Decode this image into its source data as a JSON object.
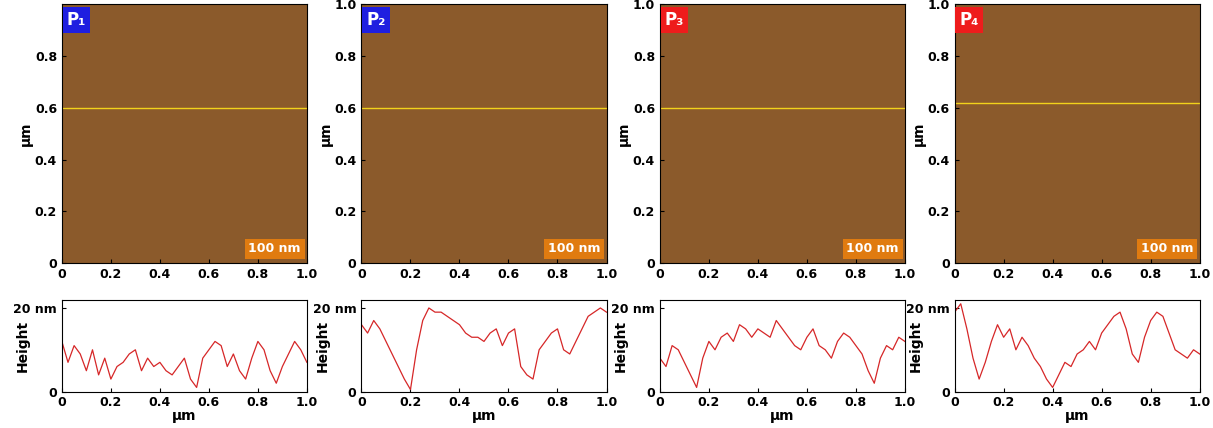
{
  "chart_data": [
    {
      "type": "image",
      "title": "P₁",
      "color": "#1f1fe0",
      "ylabel": "µm",
      "annotations": [
        "100 nm"
      ],
      "profile_line_y": 0.6,
      "xlim": [
        0,
        1
      ],
      "ylim": [
        0,
        1
      ],
      "xticks": [
        0,
        0.2,
        0.4,
        0.6,
        0.8,
        {
          "value": 1,
          "label": "1.0"
        }
      ],
      "yticks": [
        0,
        0.2,
        0.4,
        0.6,
        0.8
      ]
    },
    {
      "type": "image",
      "title": "P₂",
      "color": "#1f1fe0",
      "ylabel": "µm",
      "annotations": [
        "100 nm"
      ],
      "profile_line_y": 0.6,
      "xlim": [
        0,
        1
      ],
      "ylim": [
        0,
        1
      ],
      "xticks": [
        0,
        0.2,
        0.4,
        0.6,
        0.8,
        {
          "value": 1,
          "label": "1.0"
        }
      ],
      "yticks": [
        0,
        0.2,
        0.4,
        0.6,
        0.8,
        {
          "value": 1,
          "label": "1.0"
        }
      ]
    },
    {
      "type": "image",
      "title": "P₃",
      "color": "#ee1c1c",
      "ylabel": "µm",
      "annotations": [
        "100 nm"
      ],
      "profile_line_y": 0.6,
      "xlim": [
        0,
        1
      ],
      "ylim": [
        0,
        1
      ],
      "xticks": [
        0,
        0.2,
        0.4,
        0.6,
        0.8,
        {
          "value": 1,
          "label": "1.0"
        }
      ],
      "yticks": [
        0,
        0.2,
        0.4,
        0.6,
        0.8,
        {
          "value": 1,
          "label": "1.0"
        }
      ]
    },
    {
      "type": "image",
      "title": "P₄",
      "color": "#ee1c1c",
      "ylabel": "µm",
      "annotations": [
        "100 nm"
      ],
      "profile_line_y": 0.62,
      "xlim": [
        0,
        1
      ],
      "ylim": [
        0,
        1
      ],
      "xticks": [
        0,
        0.2,
        0.4,
        0.6,
        0.8,
        {
          "value": 1,
          "label": "1.0"
        }
      ],
      "yticks": [
        0,
        0.2,
        0.4,
        0.6,
        0.8,
        {
          "value": 1,
          "label": "1.0"
        }
      ]
    },
    {
      "type": "line",
      "xlabel": "µm",
      "ylabel": "Height",
      "color": "#d62728",
      "x": [
        0,
        0.025,
        0.05,
        0.075,
        0.1,
        0.125,
        0.15,
        0.175,
        0.2,
        0.225,
        0.25,
        0.275,
        0.3,
        0.325,
        0.35,
        0.375,
        0.4,
        0.425,
        0.45,
        0.475,
        0.5,
        0.525,
        0.55,
        0.575,
        0.6,
        0.625,
        0.65,
        0.675,
        0.7,
        0.725,
        0.75,
        0.775,
        0.8,
        0.825,
        0.85,
        0.875,
        0.9,
        0.925,
        0.95,
        0.975,
        1
      ],
      "values": [
        12,
        7,
        11,
        9,
        5,
        10,
        4,
        8,
        3,
        6,
        7,
        9,
        10,
        5,
        8,
        6,
        7,
        5,
        4,
        6,
        8,
        3,
        1,
        8,
        10,
        12,
        11,
        6,
        9,
        5,
        3,
        8,
        12,
        10,
        5,
        2,
        6,
        9,
        12,
        10,
        7
      ],
      "xlim": [
        0,
        1
      ],
      "ylim": [
        0,
        22
      ],
      "xticks": [
        0,
        0.2,
        0.4,
        0.6,
        0.8,
        {
          "value": 1,
          "label": "1.0"
        }
      ],
      "yticks": [
        0,
        {
          "value": 20,
          "label": "20 nm"
        }
      ]
    },
    {
      "type": "line",
      "xlabel": "µm",
      "ylabel": "Height",
      "color": "#d62728",
      "x": [
        0,
        0.025,
        0.05,
        0.075,
        0.1,
        0.125,
        0.15,
        0.175,
        0.2,
        0.225,
        0.25,
        0.275,
        0.3,
        0.325,
        0.35,
        0.375,
        0.4,
        0.425,
        0.45,
        0.475,
        0.5,
        0.525,
        0.55,
        0.575,
        0.6,
        0.625,
        0.65,
        0.675,
        0.7,
        0.725,
        0.75,
        0.775,
        0.8,
        0.825,
        0.85,
        0.875,
        0.9,
        0.925,
        0.95,
        0.975,
        1
      ],
      "values": [
        16,
        14,
        17,
        15,
        12,
        9,
        6,
        3,
        0.5,
        10,
        17,
        20,
        19,
        19,
        18,
        17,
        16,
        14,
        13,
        13,
        12,
        14,
        15,
        11,
        14,
        15,
        6,
        4,
        3,
        10,
        12,
        14,
        15,
        10,
        9,
        12,
        15,
        18,
        19,
        20,
        19
      ],
      "xlim": [
        0,
        1
      ],
      "ylim": [
        0,
        22
      ],
      "xticks": [
        0,
        0.2,
        0.4,
        0.6,
        0.8,
        {
          "value": 1,
          "label": "1.0"
        }
      ],
      "yticks": [
        0,
        {
          "value": 20,
          "label": "20 nm"
        }
      ]
    },
    {
      "type": "line",
      "xlabel": "µm",
      "ylabel": "Height",
      "color": "#d62728",
      "x": [
        0,
        0.025,
        0.05,
        0.075,
        0.1,
        0.125,
        0.15,
        0.175,
        0.2,
        0.225,
        0.25,
        0.275,
        0.3,
        0.325,
        0.35,
        0.375,
        0.4,
        0.425,
        0.45,
        0.475,
        0.5,
        0.525,
        0.55,
        0.575,
        0.6,
        0.625,
        0.65,
        0.675,
        0.7,
        0.725,
        0.75,
        0.775,
        0.8,
        0.825,
        0.85,
        0.875,
        0.9,
        0.925,
        0.95,
        0.975,
        1
      ],
      "values": [
        8,
        6,
        11,
        10,
        7,
        4,
        1,
        8,
        12,
        10,
        13,
        14,
        12,
        16,
        15,
        13,
        15,
        14,
        13,
        17,
        15,
        13,
        11,
        10,
        13,
        15,
        11,
        10,
        8,
        12,
        14,
        13,
        11,
        9,
        5,
        2,
        8,
        11,
        10,
        13,
        12
      ],
      "xlim": [
        0,
        1
      ],
      "ylim": [
        0,
        22
      ],
      "xticks": [
        0,
        0.2,
        0.4,
        0.6,
        0.8,
        {
          "value": 1,
          "label": "1.0"
        }
      ],
      "yticks": [
        0,
        {
          "value": 20,
          "label": "20 nm"
        }
      ]
    },
    {
      "type": "line",
      "xlabel": "µm",
      "ylabel": "Height",
      "color": "#d62728",
      "x": [
        0,
        0.025,
        0.05,
        0.075,
        0.1,
        0.125,
        0.15,
        0.175,
        0.2,
        0.225,
        0.25,
        0.275,
        0.3,
        0.325,
        0.35,
        0.375,
        0.4,
        0.425,
        0.45,
        0.475,
        0.5,
        0.525,
        0.55,
        0.575,
        0.6,
        0.625,
        0.65,
        0.675,
        0.7,
        0.725,
        0.75,
        0.775,
        0.8,
        0.825,
        0.85,
        0.875,
        0.9,
        0.925,
        0.95,
        0.975,
        1
      ],
      "values": [
        19,
        21,
        15,
        8,
        3,
        7,
        12,
        16,
        13,
        15,
        10,
        13,
        11,
        8,
        6,
        3,
        1,
        4,
        7,
        6,
        9,
        10,
        12,
        10,
        14,
        16,
        18,
        19,
        15,
        9,
        7,
        13,
        17,
        19,
        18,
        14,
        10,
        9,
        8,
        10,
        9
      ],
      "xlim": [
        0,
        1
      ],
      "ylim": [
        0,
        22
      ],
      "xticks": [
        0,
        0.2,
        0.4,
        0.6,
        0.8,
        {
          "value": 1,
          "label": "1.0"
        }
      ],
      "yticks": [
        0,
        {
          "value": 20,
          "label": "20 nm"
        }
      ]
    }
  ]
}
